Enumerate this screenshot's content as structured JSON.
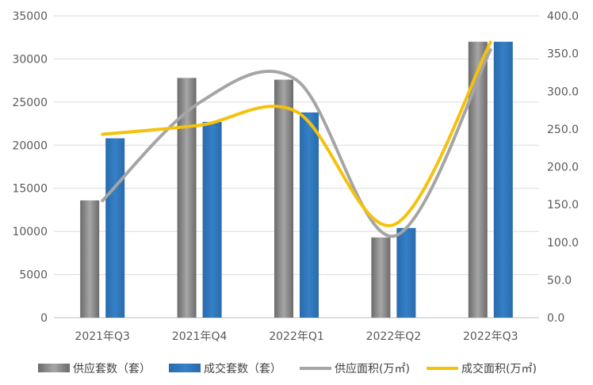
{
  "chart_data": {
    "type": "bar",
    "title": "",
    "xlabel": "",
    "ylabel": "",
    "categories": [
      "2021年Q3",
      "2021年Q4",
      "2022年Q1",
      "2022年Q2",
      "2022年Q3"
    ],
    "ylim": [
      0,
      35000
    ],
    "y_ticks": [
      "0",
      "5000",
      "10000",
      "15000",
      "20000",
      "25000",
      "30000",
      "35000"
    ],
    "y2lim": [
      0,
      400
    ],
    "y2_ticks": [
      "0.0",
      "50.0",
      "100.0",
      "150.0",
      "200.0",
      "250.0",
      "300.0",
      "350.0",
      "400.0"
    ],
    "grid": true,
    "legend_position": "bottom",
    "bar_series": [
      {
        "name": "供应套数（套）",
        "color": "#7f7f7f",
        "values": [
          13600,
          27800,
          27600,
          9300,
          32000
        ]
      },
      {
        "name": "成交套数（套）",
        "color": "#2e75b6",
        "values": [
          20800,
          22700,
          23800,
          10400,
          32000
        ]
      }
    ],
    "line_series": [
      {
        "name": "供应面积(万㎡)",
        "color": "#a5a5a5",
        "axis": "right",
        "values": [
          155,
          285,
          315,
          108,
          355
        ]
      },
      {
        "name": "成交面积(万㎡)",
        "color": "#f4c20d",
        "axis": "right",
        "values": [
          243,
          255,
          273,
          123,
          365
        ]
      }
    ]
  }
}
